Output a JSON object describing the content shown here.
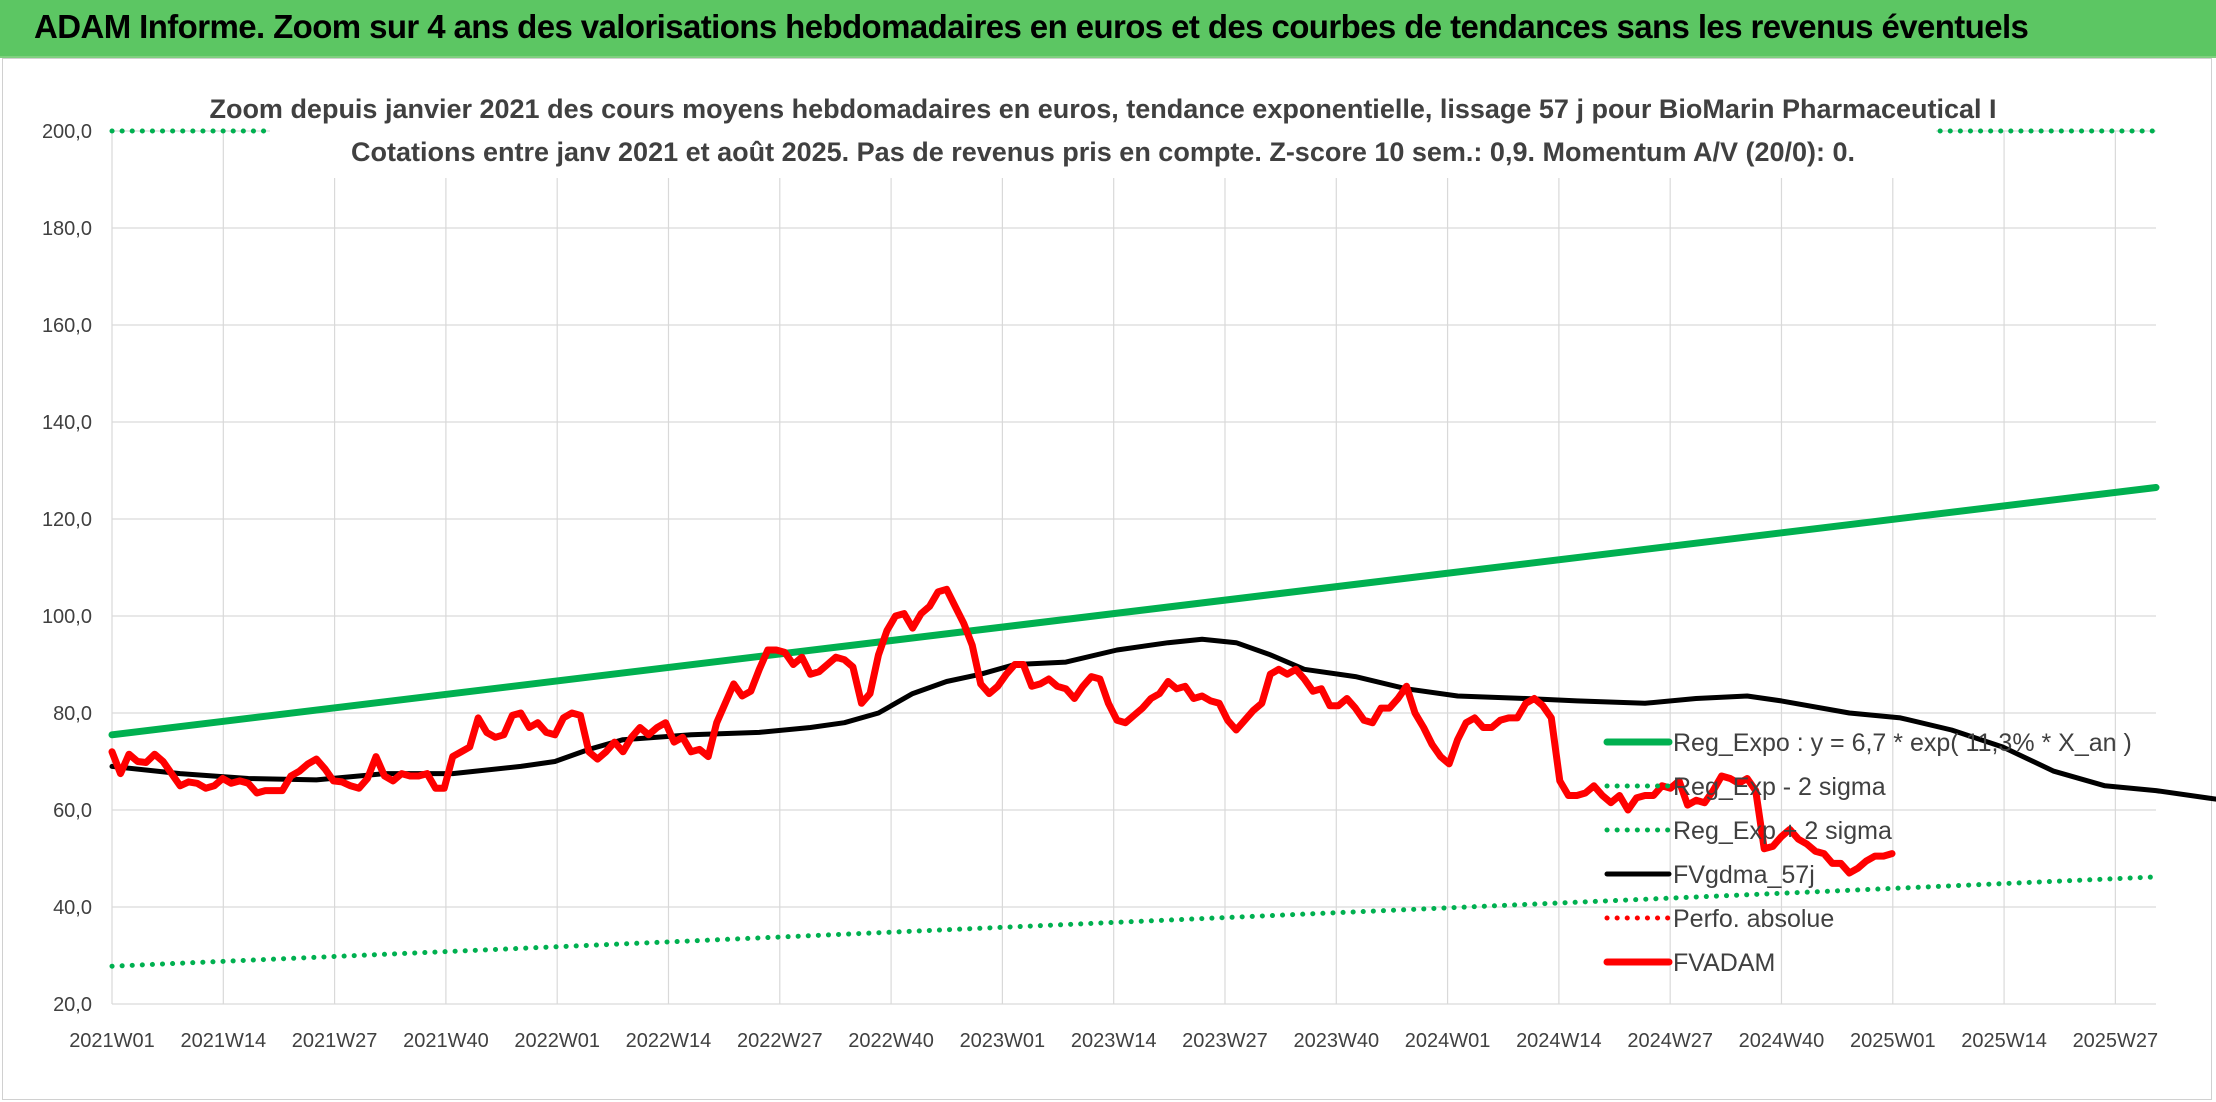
{
  "banner": {
    "title": "ADAM Informe. Zoom sur 4 ans des valorisations hebdomadaires en euros et des courbes de tendances sans les revenus éventuels"
  },
  "chart_data": {
    "type": "line",
    "title_line1": "Zoom depuis janvier 2021 des cours moyens hebdomadaires en euros, tendance exponentielle, lissage 57 j pour BioMarin Pharmaceutical I",
    "title_line2": "Cotations entre janv 2021 et août 2025. Pas de revenus pris en compte. Z-score 10 sem.: 0,9. Momentum A/V (20/0): 0.",
    "xlabel": "",
    "ylabel": "",
    "ylim": [
      20,
      200
    ],
    "yticks": [
      "20,0",
      "40,0",
      "60,0",
      "80,0",
      "100,0",
      "120,0",
      "140,0",
      "160,0",
      "180,0",
      "200,0"
    ],
    "xticks": [
      "2021W01",
      "2021W14",
      "2021W27",
      "2021W40",
      "2022W01",
      "2022W14",
      "2022W27",
      "2022W40",
      "2023W01",
      "2023W14",
      "2023W27",
      "2023W40",
      "2024W01",
      "2024W14",
      "2024W27",
      "2024W40",
      "2025W01",
      "2025W14",
      "2025W27"
    ],
    "x_range_weeks": [
      0,
      240
    ],
    "grid": true,
    "legend_position": "right",
    "series": [
      {
        "name": "Reg_Expo : y = 6,7 * exp( 11,3% *  X_an )",
        "color": "#00b050",
        "style": "solid-thick",
        "points": [
          [
            0,
            75.5
          ],
          [
            240,
            126.5
          ]
        ]
      },
      {
        "name": "Reg_Exp - 2 sigma",
        "color": "#00b050",
        "style": "dotted",
        "points": [
          [
            0,
            27.8
          ],
          [
            240,
            46.2
          ]
        ]
      },
      {
        "name": "Reg_Exp + 2 sigma",
        "color": "#00b050",
        "style": "dotted",
        "points": [
          [
            0,
            200
          ],
          [
            240,
            200
          ]
        ]
      },
      {
        "name": "FVgdma_57j",
        "color": "#000000",
        "style": "solid",
        "points": [
          [
            0,
            69
          ],
          [
            8,
            67.5
          ],
          [
            16,
            66.5
          ],
          [
            24,
            66.2
          ],
          [
            32,
            67.5
          ],
          [
            40,
            67.5
          ],
          [
            48,
            69
          ],
          [
            52,
            70
          ],
          [
            56,
            72.5
          ],
          [
            60,
            74.5
          ],
          [
            68,
            75.5
          ],
          [
            76,
            76
          ],
          [
            82,
            77
          ],
          [
            86,
            78
          ],
          [
            90,
            80
          ],
          [
            94,
            84
          ],
          [
            98,
            86.5
          ],
          [
            102,
            88
          ],
          [
            106,
            90
          ],
          [
            112,
            90.5
          ],
          [
            118,
            93
          ],
          [
            124,
            94.5
          ],
          [
            128,
            95.2
          ],
          [
            132,
            94.5
          ],
          [
            136,
            92
          ],
          [
            140,
            89
          ],
          [
            146,
            87.5
          ],
          [
            152,
            85
          ],
          [
            158,
            83.5
          ],
          [
            166,
            83
          ],
          [
            172,
            82.5
          ],
          [
            180,
            82
          ],
          [
            186,
            83
          ],
          [
            192,
            83.5
          ],
          [
            196,
            82.5
          ],
          [
            204,
            80
          ],
          [
            210,
            79
          ],
          [
            216,
            76.5
          ],
          [
            222,
            73
          ],
          [
            228,
            68
          ],
          [
            234,
            65
          ],
          [
            240,
            64
          ],
          [
            246,
            62.5
          ],
          [
            252,
            61
          ],
          [
            258,
            59.5
          ],
          [
            264,
            56
          ],
          [
            270,
            53.5
          ],
          [
            276,
            52
          ],
          [
            284,
            51.5
          ]
        ]
      },
      {
        "name": "Perfo. absolue",
        "color": "#ff0000",
        "style": "dotted",
        "points": []
      },
      {
        "name": "FVADAM",
        "color": "#ff0000",
        "style": "solid-thick",
        "points": [
          [
            0,
            72
          ],
          [
            1,
            67.5
          ],
          [
            2,
            71.5
          ],
          [
            3,
            70
          ],
          [
            4,
            69.8
          ],
          [
            5,
            71.5
          ],
          [
            6,
            70
          ],
          [
            7,
            67.5
          ],
          [
            8,
            65
          ],
          [
            9,
            65.8
          ],
          [
            10,
            65.5
          ],
          [
            11,
            64.5
          ],
          [
            12,
            65
          ],
          [
            13,
            66.5
          ],
          [
            14,
            65.5
          ],
          [
            15,
            66
          ],
          [
            16,
            65.5
          ],
          [
            17,
            63.5
          ],
          [
            18,
            64
          ],
          [
            19,
            64
          ],
          [
            20,
            64
          ],
          [
            21,
            67
          ],
          [
            22,
            68
          ],
          [
            23,
            69.5
          ],
          [
            24,
            70.5
          ],
          [
            25,
            68.5
          ],
          [
            26,
            66
          ],
          [
            27,
            65.8
          ],
          [
            28,
            65
          ],
          [
            29,
            64.5
          ],
          [
            30,
            66.5
          ],
          [
            31,
            71
          ],
          [
            32,
            67
          ],
          [
            33,
            66
          ],
          [
            34,
            67.5
          ],
          [
            35,
            67
          ],
          [
            36,
            67
          ],
          [
            37,
            67.5
          ],
          [
            38,
            64.5
          ],
          [
            39,
            64.5
          ],
          [
            40,
            71
          ],
          [
            41,
            72
          ],
          [
            42,
            73
          ],
          [
            43,
            79
          ],
          [
            44,
            76
          ],
          [
            45,
            75
          ],
          [
            46,
            75.5
          ],
          [
            47,
            79.5
          ],
          [
            48,
            80
          ],
          [
            49,
            77
          ],
          [
            50,
            78
          ],
          [
            51,
            76
          ],
          [
            52,
            75.5
          ],
          [
            53,
            79
          ],
          [
            54,
            80
          ],
          [
            55,
            79.5
          ],
          [
            56,
            72
          ],
          [
            57,
            70.5
          ],
          [
            58,
            72
          ],
          [
            59,
            74
          ],
          [
            60,
            72
          ],
          [
            61,
            75
          ],
          [
            62,
            77
          ],
          [
            63,
            75.5
          ],
          [
            64,
            77
          ],
          [
            65,
            78
          ],
          [
            66,
            74
          ],
          [
            67,
            75
          ],
          [
            68,
            72
          ],
          [
            69,
            72.5
          ],
          [
            70,
            71
          ],
          [
            71,
            78
          ],
          [
            72,
            82
          ],
          [
            73,
            86
          ],
          [
            74,
            83.5
          ],
          [
            75,
            84.5
          ],
          [
            76,
            89
          ],
          [
            77,
            93
          ],
          [
            78,
            93
          ],
          [
            79,
            92.5
          ],
          [
            80,
            90
          ],
          [
            81,
            91.5
          ],
          [
            82,
            88
          ],
          [
            83,
            88.5
          ],
          [
            84,
            90
          ],
          [
            85,
            91.5
          ],
          [
            86,
            91
          ],
          [
            87,
            89.5
          ],
          [
            88,
            82
          ],
          [
            89,
            84
          ],
          [
            90,
            92
          ],
          [
            91,
            97
          ],
          [
            92,
            100
          ],
          [
            93,
            100.5
          ],
          [
            94,
            97.5
          ],
          [
            95,
            100.5
          ],
          [
            96,
            102
          ],
          [
            97,
            105
          ],
          [
            98,
            105.5
          ],
          [
            99,
            102
          ],
          [
            100,
            98.5
          ],
          [
            101,
            94
          ],
          [
            102,
            86
          ],
          [
            103,
            84
          ],
          [
            104,
            85.5
          ],
          [
            105,
            88
          ],
          [
            106,
            90
          ],
          [
            107,
            90
          ],
          [
            108,
            85.5
          ],
          [
            109,
            86
          ],
          [
            110,
            87
          ],
          [
            111,
            85.5
          ],
          [
            112,
            85
          ],
          [
            113,
            83
          ],
          [
            114,
            85.5
          ],
          [
            115,
            87.5
          ],
          [
            116,
            87
          ],
          [
            117,
            82
          ],
          [
            118,
            78.5
          ],
          [
            119,
            78
          ],
          [
            120,
            79.5
          ],
          [
            121,
            81
          ],
          [
            122,
            83
          ],
          [
            123,
            84
          ],
          [
            124,
            86.5
          ],
          [
            125,
            85
          ],
          [
            126,
            85.5
          ],
          [
            127,
            83
          ],
          [
            128,
            83.5
          ],
          [
            129,
            82.5
          ],
          [
            130,
            82
          ],
          [
            131,
            78.5
          ],
          [
            132,
            76.5
          ],
          [
            133,
            78.5
          ],
          [
            134,
            80.5
          ],
          [
            135,
            82
          ],
          [
            136,
            88
          ],
          [
            137,
            89
          ],
          [
            138,
            88
          ],
          [
            139,
            89
          ],
          [
            140,
            87
          ],
          [
            141,
            84.5
          ],
          [
            142,
            85
          ],
          [
            143,
            81.5
          ],
          [
            144,
            81.5
          ],
          [
            145,
            83
          ],
          [
            146,
            81
          ],
          [
            147,
            78.5
          ],
          [
            148,
            78
          ],
          [
            149,
            81
          ],
          [
            150,
            81
          ],
          [
            151,
            83
          ],
          [
            152,
            85.5
          ],
          [
            153,
            80
          ],
          [
            154,
            77
          ],
          [
            155,
            73.5
          ],
          [
            156,
            71
          ],
          [
            157,
            69.5
          ],
          [
            158,
            74.5
          ],
          [
            159,
            78
          ],
          [
            160,
            79
          ],
          [
            161,
            77
          ],
          [
            162,
            77
          ],
          [
            163,
            78.5
          ],
          [
            164,
            79
          ],
          [
            165,
            79
          ],
          [
            166,
            82
          ],
          [
            167,
            83
          ],
          [
            168,
            81.5
          ],
          [
            169,
            79
          ],
          [
            170,
            66
          ],
          [
            171,
            63
          ],
          [
            172,
            63
          ],
          [
            173,
            63.5
          ],
          [
            174,
            65
          ],
          [
            175,
            63
          ],
          [
            176,
            61.5
          ],
          [
            177,
            63
          ],
          [
            178,
            60
          ],
          [
            179,
            62.5
          ],
          [
            180,
            63
          ],
          [
            181,
            63
          ],
          [
            182,
            65
          ],
          [
            183,
            64.5
          ],
          [
            184,
            66
          ],
          [
            185,
            61
          ],
          [
            186,
            62
          ],
          [
            187,
            61.5
          ],
          [
            188,
            64
          ],
          [
            189,
            67
          ],
          [
            190,
            66.5
          ],
          [
            191,
            65.5
          ],
          [
            192,
            66.5
          ],
          [
            193,
            64
          ],
          [
            194,
            52
          ],
          [
            195,
            52.5
          ],
          [
            196,
            54.5
          ],
          [
            197,
            56
          ],
          [
            198,
            54
          ],
          [
            199,
            53
          ],
          [
            200,
            51.5
          ],
          [
            201,
            51
          ],
          [
            202,
            49
          ],
          [
            203,
            49
          ],
          [
            204,
            47
          ],
          [
            205,
            48
          ],
          [
            206,
            49.5
          ],
          [
            207,
            50.5
          ],
          [
            208,
            50.5
          ],
          [
            209,
            51
          ]
        ]
      }
    ]
  }
}
